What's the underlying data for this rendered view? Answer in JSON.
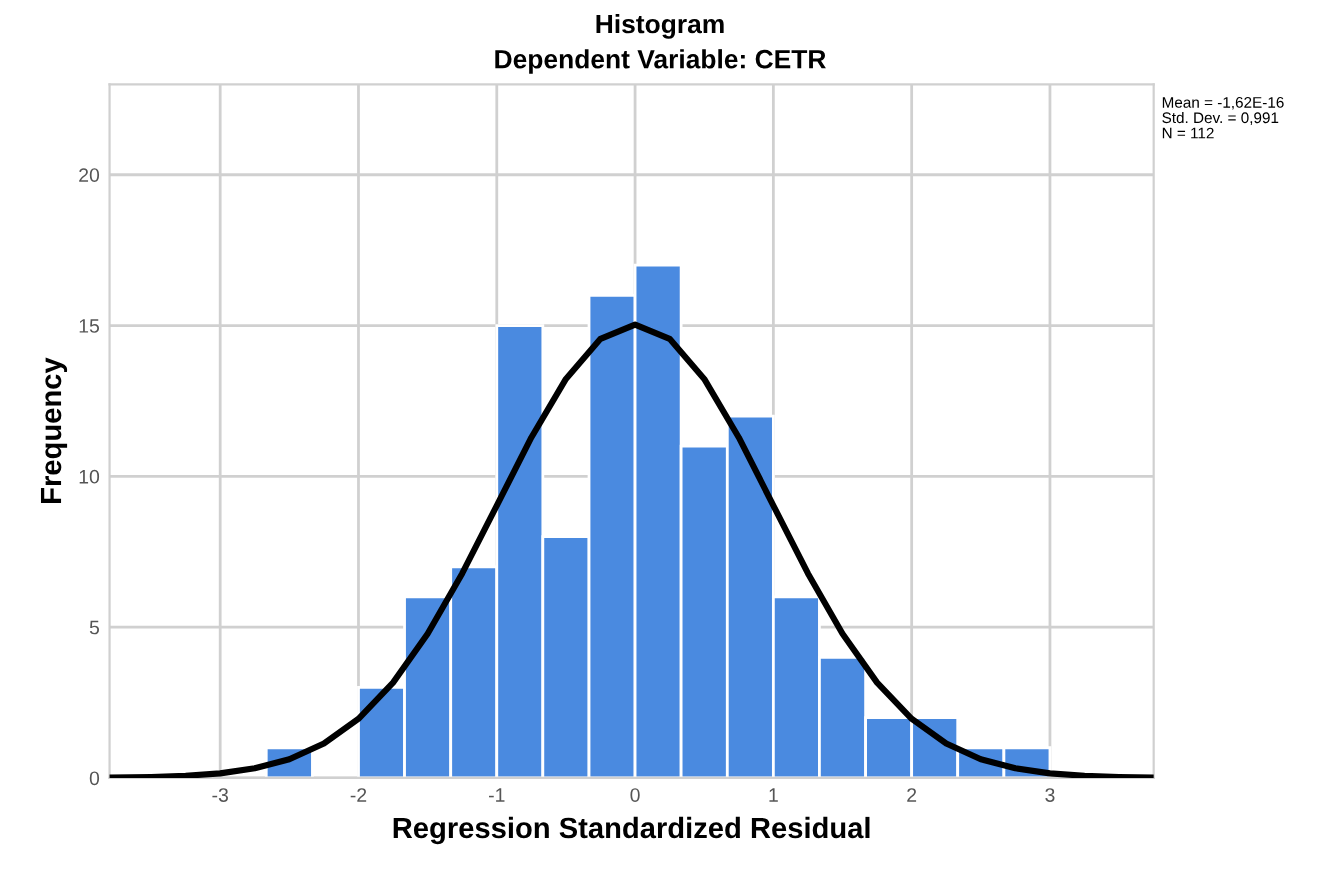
{
  "chart_data": {
    "type": "histogram",
    "title": "Histogram",
    "subtitle": "Dependent Variable: CETR",
    "xlabel": "Regression Standardized Residual",
    "ylabel": "Frequency",
    "bins": [
      -2.667,
      -2.333,
      -2,
      -1.667,
      -1.333,
      -1,
      -0.667,
      -0.333,
      0,
      0.333,
      0.667,
      1,
      1.333,
      1.667,
      2,
      2.333,
      2.667,
      3
    ],
    "values": [
      1,
      0,
      3,
      6,
      7,
      15,
      8,
      16,
      17,
      11,
      12,
      6,
      4,
      2,
      2,
      1,
      1
    ],
    "color": "#4a8ae0",
    "series": [
      {
        "type": "line",
        "color": "#000000",
        "x": [
          -3.8,
          -3.5,
          -3.25,
          -3,
          -2.75,
          -2.5,
          -2.25,
          -2,
          -1.75,
          -1.5,
          -1.25,
          -1,
          -0.75,
          -0.5,
          -0.25,
          0,
          0.25,
          0.5,
          0.75,
          1,
          1.25,
          1.5,
          1.75,
          2,
          2.25,
          2.5,
          2.75,
          3,
          3.25,
          3.5,
          3.75
        ],
        "values": [
          0.01,
          0.03,
          0.07,
          0.15,
          0.32,
          0.62,
          1.14,
          1.96,
          3.16,
          4.78,
          6.78,
          9.03,
          11.29,
          13.23,
          14.56,
          15.03,
          14.56,
          13.23,
          11.29,
          9.03,
          6.78,
          4.78,
          3.16,
          1.96,
          1.14,
          0.62,
          0.32,
          0.15,
          0.07,
          0.03,
          0.01
        ]
      }
    ],
    "annotations": [
      "Mean = -1,62E-16\nStd. Dev. = 0,991\nN = 112"
    ],
    "xlim": [
      -3.8,
      3.75
    ],
    "ylim": [
      0,
      23
    ],
    "xticks": [
      -3,
      -2,
      -1,
      0,
      1,
      2,
      3
    ],
    "yticks": [
      0,
      5,
      10,
      15,
      20
    ],
    "grid": true,
    "legend": false,
    "marker": "none",
    "line_style": "solid"
  }
}
